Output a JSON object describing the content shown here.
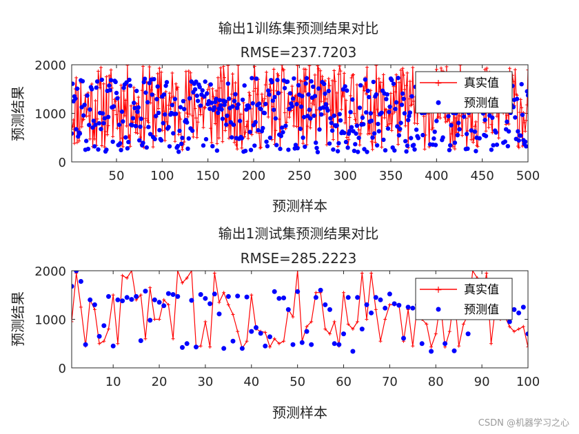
{
  "watermark": "CSDN @机器学习之心",
  "colors": {
    "true_line": "#ff0000",
    "pred_marker": "#0000ff",
    "axis": "#262626"
  },
  "chart_data": [
    {
      "type": "line",
      "title_line1": "输出1训练集预测结果对比",
      "title_line2": "RMSE=237.7203",
      "xlabel": "预测样本",
      "ylabel": "预测结果",
      "xlim": [
        1,
        500
      ],
      "ylim": [
        0,
        2000
      ],
      "xticks": [
        50,
        100,
        150,
        200,
        250,
        300,
        350,
        400,
        450,
        500
      ],
      "yticks": [
        0,
        1000,
        2000
      ],
      "legend": {
        "position": "top-right",
        "entries": [
          "真实值",
          "预测值"
        ]
      },
      "series": [
        {
          "name": "真实值",
          "style": "red-line-plus",
          "n": 500,
          "range": [
            250,
            2000
          ],
          "seed": 11
        },
        {
          "name": "预测值",
          "style": "blue-dot",
          "n": 500,
          "range": [
            200,
            1750
          ],
          "seed": 29
        }
      ]
    },
    {
      "type": "line",
      "title_line1": "输出1测试集预测结果对比",
      "title_line2": "RMSE=285.2223",
      "xlabel": "预测样本",
      "ylabel": "预测结果",
      "xlim": [
        1,
        100
      ],
      "ylim": [
        0,
        2000
      ],
      "xticks": [
        10,
        20,
        30,
        40,
        50,
        60,
        70,
        80,
        90,
        100
      ],
      "yticks": [
        0,
        1000,
        2000
      ],
      "legend": {
        "position": "top-right",
        "entries": [
          "真实值",
          "预测值"
        ]
      },
      "series": [
        {
          "name": "真实值",
          "style": "red-line-plus",
          "values": [
            950,
            1950,
            1250,
            450,
            1400,
            1200,
            500,
            550,
            800,
            1500,
            500,
            1900,
            1850,
            2000,
            1400,
            1500,
            600,
            1650,
            1000,
            1000,
            1400,
            1300,
            600,
            2000,
            1750,
            1850,
            2000,
            430,
            450,
            950,
            430,
            1950,
            1350,
            1550,
            1300,
            1100,
            750,
            400,
            550,
            1500,
            800,
            750,
            730,
            430,
            600,
            500,
            550,
            1200,
            1050,
            2000,
            550,
            850,
            950,
            1550,
            1550,
            800,
            700,
            950,
            450,
            1550,
            900,
            800,
            950,
            1950,
            1000,
            1950,
            1200,
            550,
            1000,
            1300,
            1300,
            1300,
            550,
            1200,
            450,
            1300,
            1000,
            900,
            430,
            700,
            1350,
            430,
            750,
            1500,
            450,
            900,
            1100,
            2000,
            1850,
            1300,
            1950,
            500,
            1300,
            1000,
            1050,
            850,
            750,
            800,
            850,
            430
          ]
        },
        {
          "name": "预测值",
          "style": "blue-dot",
          "values": [
            1680,
            2000,
            1780,
            480,
            1400,
            1300,
            650,
            870,
            1470,
            450,
            1400,
            1380,
            1450,
            1410,
            1470,
            560,
            1580,
            980,
            1400,
            1350,
            1280,
            1530,
            1510,
            1470,
            420,
            500,
            1390,
            430,
            1510,
            1430,
            1320,
            1520,
            1110,
            400,
            1470,
            550,
            1480,
            400,
            1460,
            750,
            830,
            710,
            450,
            640,
            1570,
            1430,
            1440,
            1200,
            480,
            1570,
            520,
            750,
            480,
            1450,
            1600,
            1300,
            1200,
            500,
            480,
            700,
            1450,
            340,
            1450,
            800,
            1300,
            1130,
            1450,
            1400,
            1230,
            1520,
            1320,
            1290,
            610,
            1250,
            1230,
            1300,
            500,
            1080,
            340,
            1200,
            1150,
            500,
            1280,
            350,
            1200,
            1300,
            700,
            1500,
            1330,
            1200,
            1300,
            1530,
            1200,
            1250,
            1280,
            950,
            1200,
            1130,
            1250,
            700
          ]
        }
      ]
    }
  ]
}
